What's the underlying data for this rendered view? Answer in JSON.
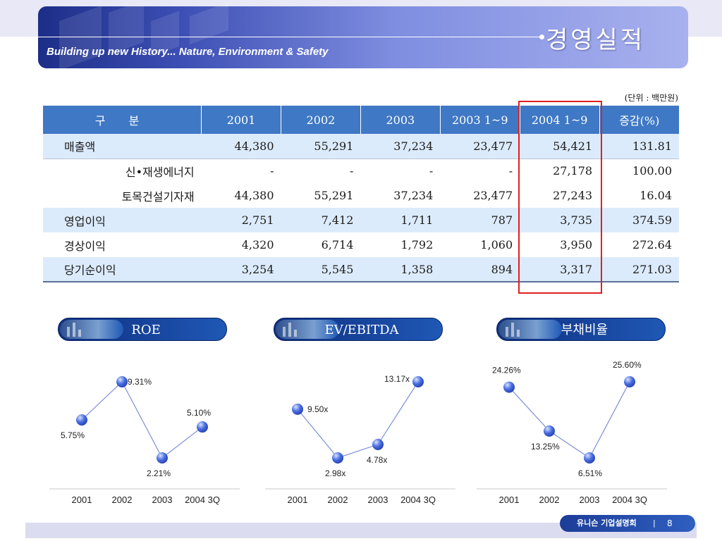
{
  "header": {
    "title": "경영실적",
    "subtitle": "Building up new History... Nature, Environment & Safety"
  },
  "unit_note": "(단위 : 백만원)",
  "table": {
    "headers": [
      "구 분",
      "2001",
      "2002",
      "2003",
      "2003 1~9",
      "2004 1~9",
      "증감(%)"
    ],
    "rows": [
      {
        "label": "매출액",
        "values": [
          "44,380",
          "55,291",
          "37,234",
          "23,477",
          "54,421",
          "131.81"
        ]
      },
      {
        "label": "신•재생에너지",
        "values": [
          "-",
          "-",
          "-",
          "-",
          "27,178",
          "100.00"
        ]
      },
      {
        "label": "토목건설기자재",
        "values": [
          "44,380",
          "55,291",
          "37,234",
          "23,477",
          "27,243",
          "16.04"
        ]
      },
      {
        "label": "영업이익",
        "values": [
          "2,751",
          "7,412",
          "1,711",
          "787",
          "3,735",
          "374.59"
        ]
      },
      {
        "label": "경상이익",
        "values": [
          "4,320",
          "6,714",
          "1,792",
          "1,060",
          "3,950",
          "272.64"
        ]
      },
      {
        "label": "당기순이익",
        "values": [
          "3,254",
          "5,545",
          "1,358",
          "894",
          "3,317",
          "271.03"
        ]
      }
    ]
  },
  "chart_data": [
    {
      "type": "line",
      "title": "ROE",
      "categories": [
        "2001",
        "2002",
        "2003",
        "2004 3Q"
      ],
      "values": [
        5.75,
        9.31,
        2.21,
        5.1
      ],
      "labels": [
        "5.75%",
        "9.31%",
        "2.21%",
        "5.10%"
      ],
      "grid": false
    },
    {
      "type": "line",
      "title": "EV/EBITDA",
      "categories": [
        "2001",
        "2002",
        "2003",
        "2004 3Q"
      ],
      "values": [
        9.5,
        2.98,
        4.78,
        13.17
      ],
      "labels": [
        "9.50x",
        "2.98x",
        "4.78x",
        "13.17x"
      ],
      "grid": false
    },
    {
      "type": "line",
      "title": "부채비율",
      "categories": [
        "2001",
        "2002",
        "2003",
        "2004 3Q"
      ],
      "values": [
        24.26,
        13.25,
        6.51,
        25.6
      ],
      "labels": [
        "24.26%",
        "13.25%",
        "6.51%",
        "25.60%"
      ],
      "grid": false
    }
  ],
  "footer": {
    "org": "유니슨 기업설명회",
    "separator": "|",
    "page": "8"
  },
  "colors": {
    "header_row": "#3f78c4",
    "shade_row": "#dcebfb",
    "highlight": "#e02020",
    "line": "#7d8fd6",
    "marker": "#4a6fe0"
  }
}
